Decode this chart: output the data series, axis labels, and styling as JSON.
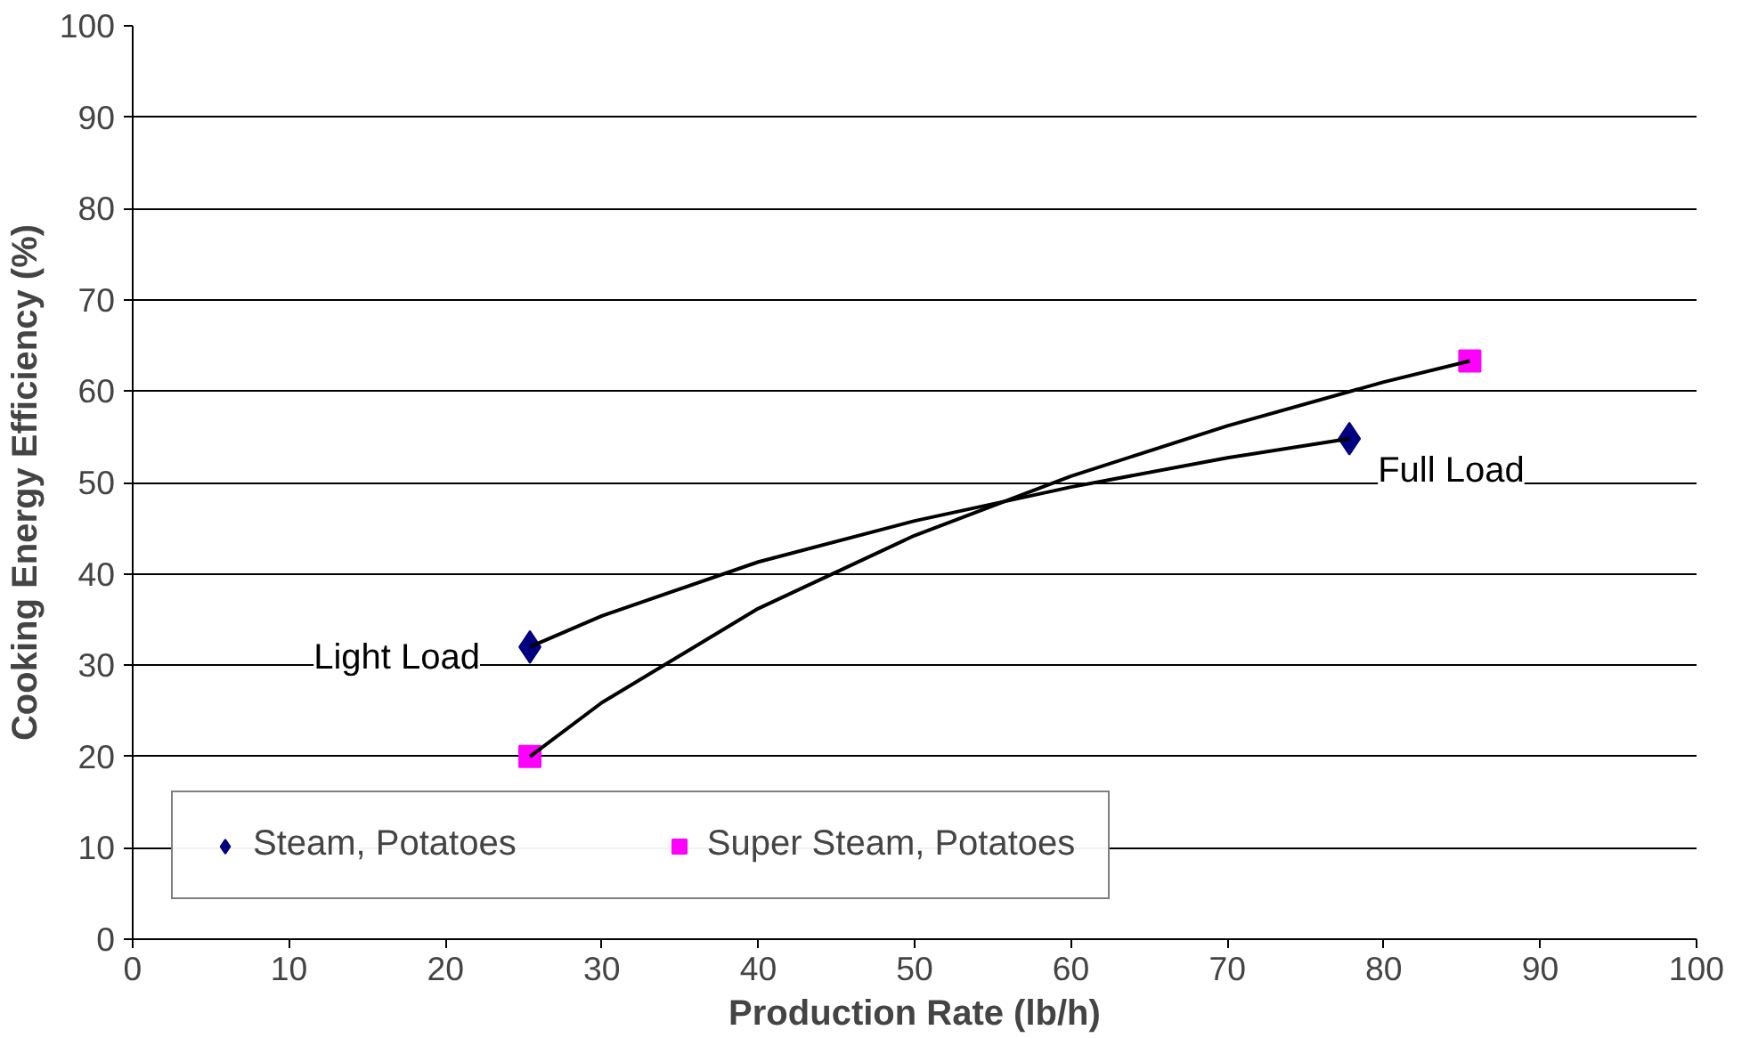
{
  "chart_data": {
    "type": "scatter",
    "xlabel": "Production Rate (lb/h)",
    "ylabel": "Cooking Energy Efficiency (%)",
    "xlim": [
      0,
      100
    ],
    "ylim": [
      0,
      100
    ],
    "xticks": [
      0,
      10,
      20,
      30,
      40,
      50,
      60,
      70,
      80,
      90,
      100
    ],
    "yticks": [
      0,
      10,
      20,
      30,
      40,
      50,
      60,
      70,
      80,
      90,
      100
    ],
    "grid": "y",
    "legend": "bottom left",
    "series": [
      {
        "name": "Steam, Potatoes",
        "color": "#000080",
        "marker": "diamond",
        "x": [
          25.4,
          77.8
        ],
        "values": [
          32,
          54.8
        ]
      },
      {
        "name": "Super Steam, Potatoes",
        "color": "#ff00ff",
        "marker": "square",
        "x": [
          25.4,
          85.5
        ],
        "values": [
          20,
          63.3
        ]
      },
      {
        "type": "line",
        "color": "#000000",
        "marker": "none",
        "x": [
          25.4,
          30,
          40,
          50,
          60,
          70,
          77.8
        ],
        "values": [
          32,
          35.4,
          41.3,
          45.8,
          49.5,
          52.7,
          54.8
        ]
      },
      {
        "type": "line",
        "color": "#000000",
        "marker": "none",
        "x": [
          25.4,
          30,
          40,
          50,
          60,
          70,
          80,
          85.5
        ],
        "values": [
          20,
          25.9,
          36.2,
          44.2,
          50.7,
          56.2,
          61.0,
          63.3
        ]
      }
    ],
    "annotations": [
      {
        "text": "Light Load",
        "x": 25.4,
        "y": 32
      },
      {
        "text": "Full Load",
        "x": 77.8,
        "y": 54.8
      }
    ]
  }
}
